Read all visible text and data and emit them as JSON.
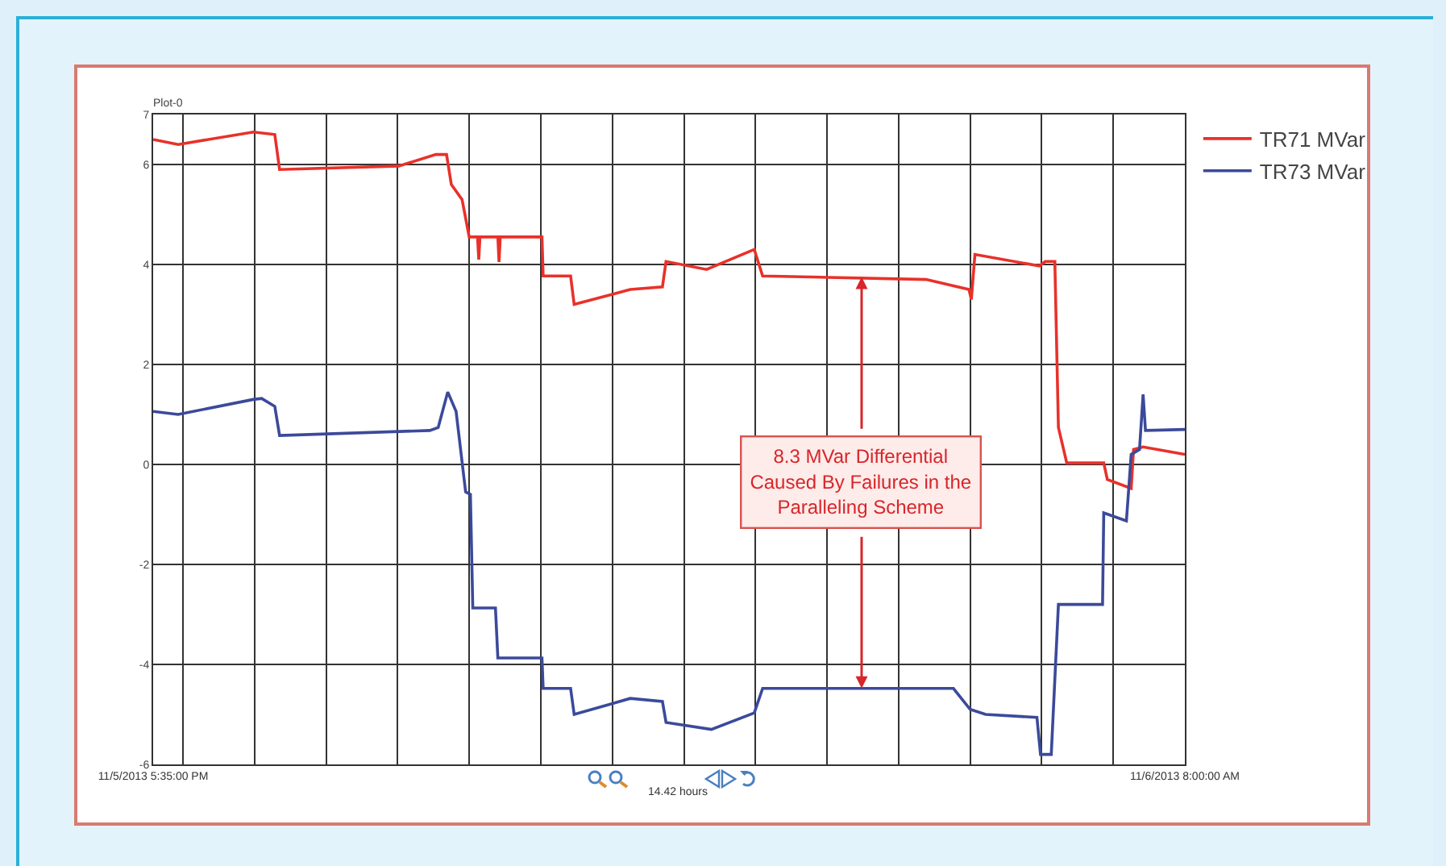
{
  "chart_data": {
    "type": "line",
    "title": "Plot-0",
    "annotations": [
      {
        "text": "8.3 MVar Differential\nCaused By Failures in the\nParalleling Scheme",
        "x": "2013-11-06T03:29",
        "y": 3.75
      },
      "14.42 hours"
    ],
    "series": [
      {
        "name": "TR71 MVar",
        "color": "#e8312a",
        "x": [
          "2013-11-05T17:35",
          "2013-11-05T17:56",
          "2013-11-05T18:59",
          "2013-11-05T19:17",
          "2013-11-05T19:21",
          "2013-11-05T21:01",
          "2013-11-05T21:32",
          "2013-11-05T21:41",
          "2013-11-05T21:45",
          "2013-11-05T21:54",
          "2013-11-05T22:00",
          "2013-11-05T22:07",
          "2013-11-05T22:08",
          "2013-11-05T22:09",
          "2013-11-05T22:24",
          "2013-11-05T22:25",
          "2013-11-05T22:26",
          "2013-11-05T23:01",
          "2013-11-05T23:02",
          "2013-11-05T23:25",
          "2013-11-05T23:28",
          "2013-11-06T00:15",
          "2013-11-06T00:42",
          "2013-11-06T00:45",
          "2013-11-06T01:19",
          "2013-11-06T01:59",
          "2013-11-06T02:06",
          "2013-11-06T04:23",
          "2013-11-06T04:59",
          "2013-11-06T05:01",
          "2013-11-06T05:04",
          "2013-11-06T05:58",
          "2013-11-06T06:03",
          "2013-11-06T06:11",
          "2013-11-06T06:14",
          "2013-11-06T06:21",
          "2013-11-06T06:52",
          "2013-11-06T06:55",
          "2013-11-06T07:15",
          "2013-11-06T07:17",
          "2013-11-06T07:25",
          "2013-11-06T08:00"
        ],
        "values": [
          6.5,
          6.4,
          6.65,
          6.6,
          5.9,
          5.97,
          6.2,
          6.2,
          5.6,
          5.3,
          4.55,
          4.55,
          4.1,
          4.55,
          4.55,
          4.05,
          4.55,
          4.55,
          3.77,
          3.77,
          3.2,
          3.5,
          3.55,
          4.06,
          3.9,
          4.3,
          3.77,
          3.7,
          3.5,
          3.3,
          4.2,
          3.97,
          4.06,
          4.06,
          0.74,
          0.03,
          0.03,
          -0.3,
          -0.48,
          0.3,
          0.35,
          0.2
        ]
      },
      {
        "name": "TR73 MVar",
        "color": "#3b4a9a",
        "x": [
          "2013-11-05T17:35",
          "2013-11-05T17:56",
          "2013-11-05T18:59",
          "2013-11-05T19:06",
          "2013-11-05T19:17",
          "2013-11-05T19:21",
          "2013-11-05T21:27",
          "2013-11-05T21:34",
          "2013-11-05T21:42",
          "2013-11-05T21:49",
          "2013-11-05T21:57",
          "2013-11-05T22:01",
          "2013-11-05T22:03",
          "2013-11-05T22:22",
          "2013-11-05T22:24",
          "2013-11-05T23:01",
          "2013-11-05T23:02",
          "2013-11-05T23:25",
          "2013-11-05T23:28",
          "2013-11-06T00:15",
          "2013-11-06T00:42",
          "2013-11-06T00:45",
          "2013-11-06T01:23",
          "2013-11-06T01:59",
          "2013-11-06T02:06",
          "2013-11-06T04:46",
          "2013-11-06T05:00",
          "2013-11-06T05:13",
          "2013-11-06T05:56",
          "2013-11-06T05:59",
          "2013-11-06T06:08",
          "2013-11-06T06:14",
          "2013-11-06T06:51",
          "2013-11-06T06:52",
          "2013-11-06T07:11",
          "2013-11-06T07:15",
          "2013-11-06T07:22",
          "2013-11-06T07:25",
          "2013-11-06T07:27",
          "2013-11-06T08:00"
        ],
        "values": [
          1.06,
          1.0,
          1.3,
          1.32,
          1.16,
          0.58,
          0.68,
          0.74,
          1.45,
          1.06,
          -0.55,
          -0.6,
          -2.87,
          -2.87,
          -3.87,
          -3.87,
          -4.48,
          -4.48,
          -5.0,
          -4.68,
          -4.74,
          -5.16,
          -5.3,
          -4.97,
          -4.48,
          -4.48,
          -4.9,
          -5.0,
          -5.06,
          -5.8,
          -5.8,
          -2.8,
          -2.8,
          -0.97,
          -1.13,
          0.2,
          0.3,
          1.4,
          0.68,
          0.7
        ]
      }
    ],
    "xlim": [
      "2013-11-05T17:35",
      "2013-11-06T08:00"
    ],
    "xticks": [
      {
        "value": "2013-11-05T17:35",
        "label": "11/5/2013 5:35:00 PM"
      },
      {
        "value": "2013-11-05T18:00",
        "label": null
      },
      {
        "value": "2013-11-05T19:00",
        "label": null
      },
      {
        "value": "2013-11-05T20:00",
        "label": null
      },
      {
        "value": "2013-11-05T21:00",
        "label": null
      },
      {
        "value": "2013-11-05T22:00",
        "label": null
      },
      {
        "value": "2013-11-05T23:00",
        "label": null
      },
      {
        "value": "2013-11-06T00:00",
        "label": null
      },
      {
        "value": "2013-11-06T01:00",
        "label": null
      },
      {
        "value": "2013-11-06T02:00",
        "label": null
      },
      {
        "value": "2013-11-06T03:00",
        "label": null
      },
      {
        "value": "2013-11-06T04:00",
        "label": null
      },
      {
        "value": "2013-11-06T05:00",
        "label": null
      },
      {
        "value": "2013-11-06T06:00",
        "label": null
      },
      {
        "value": "2013-11-06T07:00",
        "label": null
      },
      {
        "value": "2013-11-06T08:00",
        "label": "11/6/2013 8:00:00 AM"
      }
    ],
    "ylim": [
      -6,
      7
    ],
    "yticks": [
      -6,
      -4,
      -2,
      0,
      2,
      4,
      6,
      7
    ],
    "grid": true,
    "legend": "top right",
    "marker": "none",
    "line_style": "solid"
  }
}
